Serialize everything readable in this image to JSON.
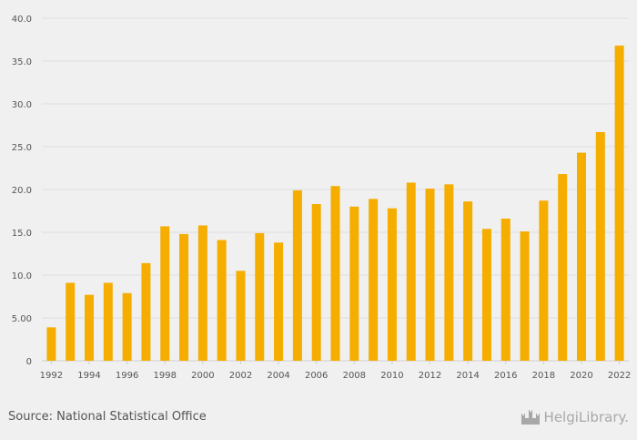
{
  "chart_data": {
    "type": "bar",
    "categories": [
      "1992",
      "1993",
      "1994",
      "1995",
      "1996",
      "1997",
      "1998",
      "1999",
      "2000",
      "2001",
      "2002",
      "2003",
      "2004",
      "2005",
      "2006",
      "2007",
      "2008",
      "2009",
      "2010",
      "2011",
      "2012",
      "2013",
      "2014",
      "2015",
      "2016",
      "2017",
      "2018",
      "2019",
      "2020",
      "2021",
      "2022"
    ],
    "values": [
      3.9,
      9.1,
      7.7,
      9.1,
      7.9,
      11.4,
      15.7,
      14.8,
      15.8,
      14.1,
      10.5,
      14.9,
      13.8,
      19.9,
      18.3,
      20.4,
      18.0,
      18.9,
      17.8,
      20.8,
      20.1,
      20.6,
      18.6,
      15.4,
      16.6,
      15.1,
      18.7,
      21.8,
      24.3,
      26.7,
      36.8
    ],
    "x_tick_labels": [
      "1992",
      "1994",
      "1996",
      "1998",
      "2000",
      "2002",
      "2004",
      "2006",
      "2008",
      "2010",
      "2012",
      "2014",
      "2016",
      "2018",
      "2020",
      "2022"
    ],
    "y_ticks": [
      0,
      5,
      10,
      15,
      20,
      25,
      30,
      35,
      40
    ],
    "y_tick_labels": [
      "0",
      "5.00",
      "10.0",
      "15.0",
      "20.0",
      "25.0",
      "30.0",
      "35.0",
      "40.0"
    ],
    "ylim": [
      0,
      40
    ],
    "grid": true,
    "bar_color": "#f5ad00",
    "background_color": "#f0f0f0",
    "title": "",
    "xlabel": "",
    "ylabel": ""
  },
  "footer": {
    "source": "Source: National Statistical Office",
    "brand": "HelgiLibrary."
  },
  "icons": {
    "brand_logo": "castle-icon"
  }
}
